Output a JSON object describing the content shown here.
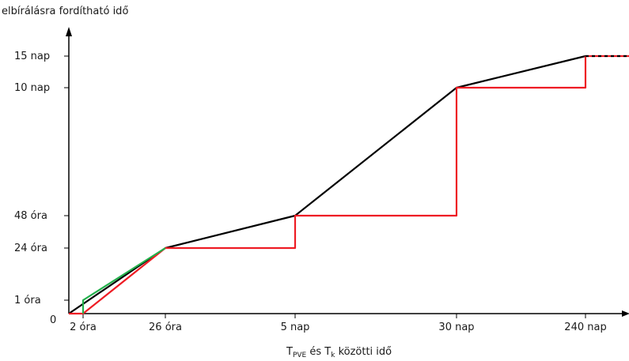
{
  "chart_data": {
    "type": "line",
    "ylabel": "elbírálásra fordítható idő",
    "xlabel": {
      "t1": "T",
      "s1": "PVE",
      "mid": " és T",
      "s2": "k",
      "tail": " közötti idő"
    },
    "origin_label": "0",
    "x_categories": [
      "2 óra",
      "26 óra",
      "5 nap",
      "30 nap",
      "240 nap"
    ],
    "y_categories": [
      "1 óra",
      "24 óra",
      "48 óra",
      "10 nap",
      "15 nap"
    ],
    "series": [
      {
        "color": "#000000",
        "style": "solid",
        "points": [
          [
            "0",
            "0"
          ],
          [
            "26 óra",
            "24 óra"
          ],
          [
            "5 nap",
            "48 óra"
          ],
          [
            "30 nap",
            "10 nap"
          ],
          [
            "240 nap",
            "15 nap"
          ]
        ]
      },
      {
        "color": "#ee1c24",
        "style": "step",
        "points": [
          [
            "0",
            "0"
          ],
          [
            "2 óra",
            "0"
          ],
          [
            "26 óra",
            "24 óra"
          ],
          [
            "5 nap",
            "24 óra"
          ],
          [
            "5 nap",
            "48 óra"
          ],
          [
            "30 nap",
            "48 óra"
          ],
          [
            "30 nap",
            "10 nap"
          ],
          [
            "240 nap",
            "10 nap"
          ],
          [
            "240 nap",
            "15 nap"
          ]
        ]
      },
      {
        "color": "#22b04b",
        "style": "solid",
        "points": [
          [
            "2 óra",
            "0"
          ],
          [
            "2 óra",
            "1 óra"
          ],
          [
            "26 óra",
            "24 óra"
          ]
        ]
      }
    ],
    "extension": {
      "color": "#ee1c24",
      "style": "dashed",
      "level": "15 nap"
    }
  }
}
